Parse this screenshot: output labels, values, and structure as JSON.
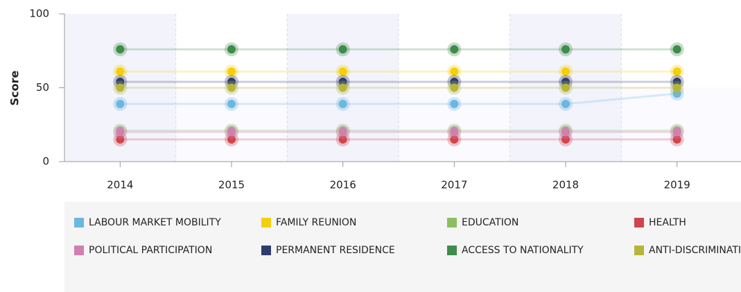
{
  "chart_data": {
    "type": "line",
    "y_label": "Score",
    "categories": [
      "2014",
      "2015",
      "2016",
      "2017",
      "2018",
      "2019"
    ],
    "ylim": [
      0,
      100
    ],
    "yticks": [
      0,
      50,
      100
    ],
    "series": [
      {
        "name": "LABOUR MARKET MOBILITY",
        "color": "#6bb7e0",
        "values": [
          39,
          39,
          39,
          39,
          39,
          46
        ]
      },
      {
        "name": "FAMILY REUNION",
        "color": "#f5cf0a",
        "values": [
          61,
          61,
          61,
          61,
          61,
          61
        ]
      },
      {
        "name": "EDUCATION",
        "color": "#8dbf5f",
        "values": [
          21,
          21,
          21,
          21,
          21,
          21
        ]
      },
      {
        "name": "HEALTH",
        "color": "#d0454c",
        "values": [
          15,
          15,
          15,
          15,
          15,
          15
        ]
      },
      {
        "name": "POLITICAL PARTICIPATION",
        "color": "#d17fb3",
        "values": [
          20,
          20,
          20,
          20,
          20,
          20
        ]
      },
      {
        "name": "PERMANENT RESIDENCE",
        "color": "#2e3d6f",
        "values": [
          54,
          54,
          54,
          54,
          54,
          54
        ]
      },
      {
        "name": "ACCESS TO NATIONALITY",
        "color": "#3e8c4a",
        "values": [
          76,
          76,
          76,
          76,
          76,
          76
        ]
      },
      {
        "name": "ANTI-DISCRIMINATION",
        "color": "#b5b53a",
        "values": [
          50,
          50,
          50,
          50,
          50,
          50
        ]
      }
    ]
  }
}
